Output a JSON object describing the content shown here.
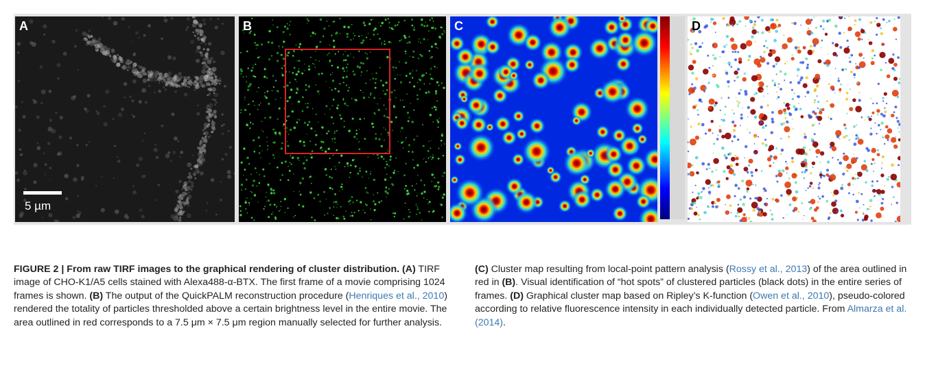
{
  "figure": {
    "panels": [
      "A",
      "B",
      "C",
      "D"
    ],
    "scale_bar": "5 µm"
  },
  "caption": {
    "runs": [
      "FIGURE 2 | From raw TIRF images to the graphical rendering of cluster distribution. (A)",
      " TIRF image of CHO-K1/A5 cells stained with Alexa488-α-BTX. The first frame of a movie comprising 1024 frames is shown. ",
      "(B)",
      " The output of the QuickPALM reconstruction procedure (",
      "Henriques et al., 2010",
      ") rendered the totality of particles thresholded above a certain brightness level in the entire movie. The area outlined in red corresponds to a 7.5 μm × 7.5 μm region manually selected for further analysis. ",
      "(C)",
      " Cluster map resulting from local-point pattern analysis (",
      "Rossy et al., 2013",
      ") of the area outlined in red in ",
      "(B)",
      ". Visual identification of “hot spots” of clustered particles (black dots) in the entire series of frames. ",
      "(D)",
      " Graphical cluster map based on Ripley’s K-function (",
      "Owen et al., 2010",
      "), pseudo-colored according to relative fluorescence intensity in each individually detected particle. From ",
      "Almarza et al. (2014)",
      "."
    ]
  }
}
